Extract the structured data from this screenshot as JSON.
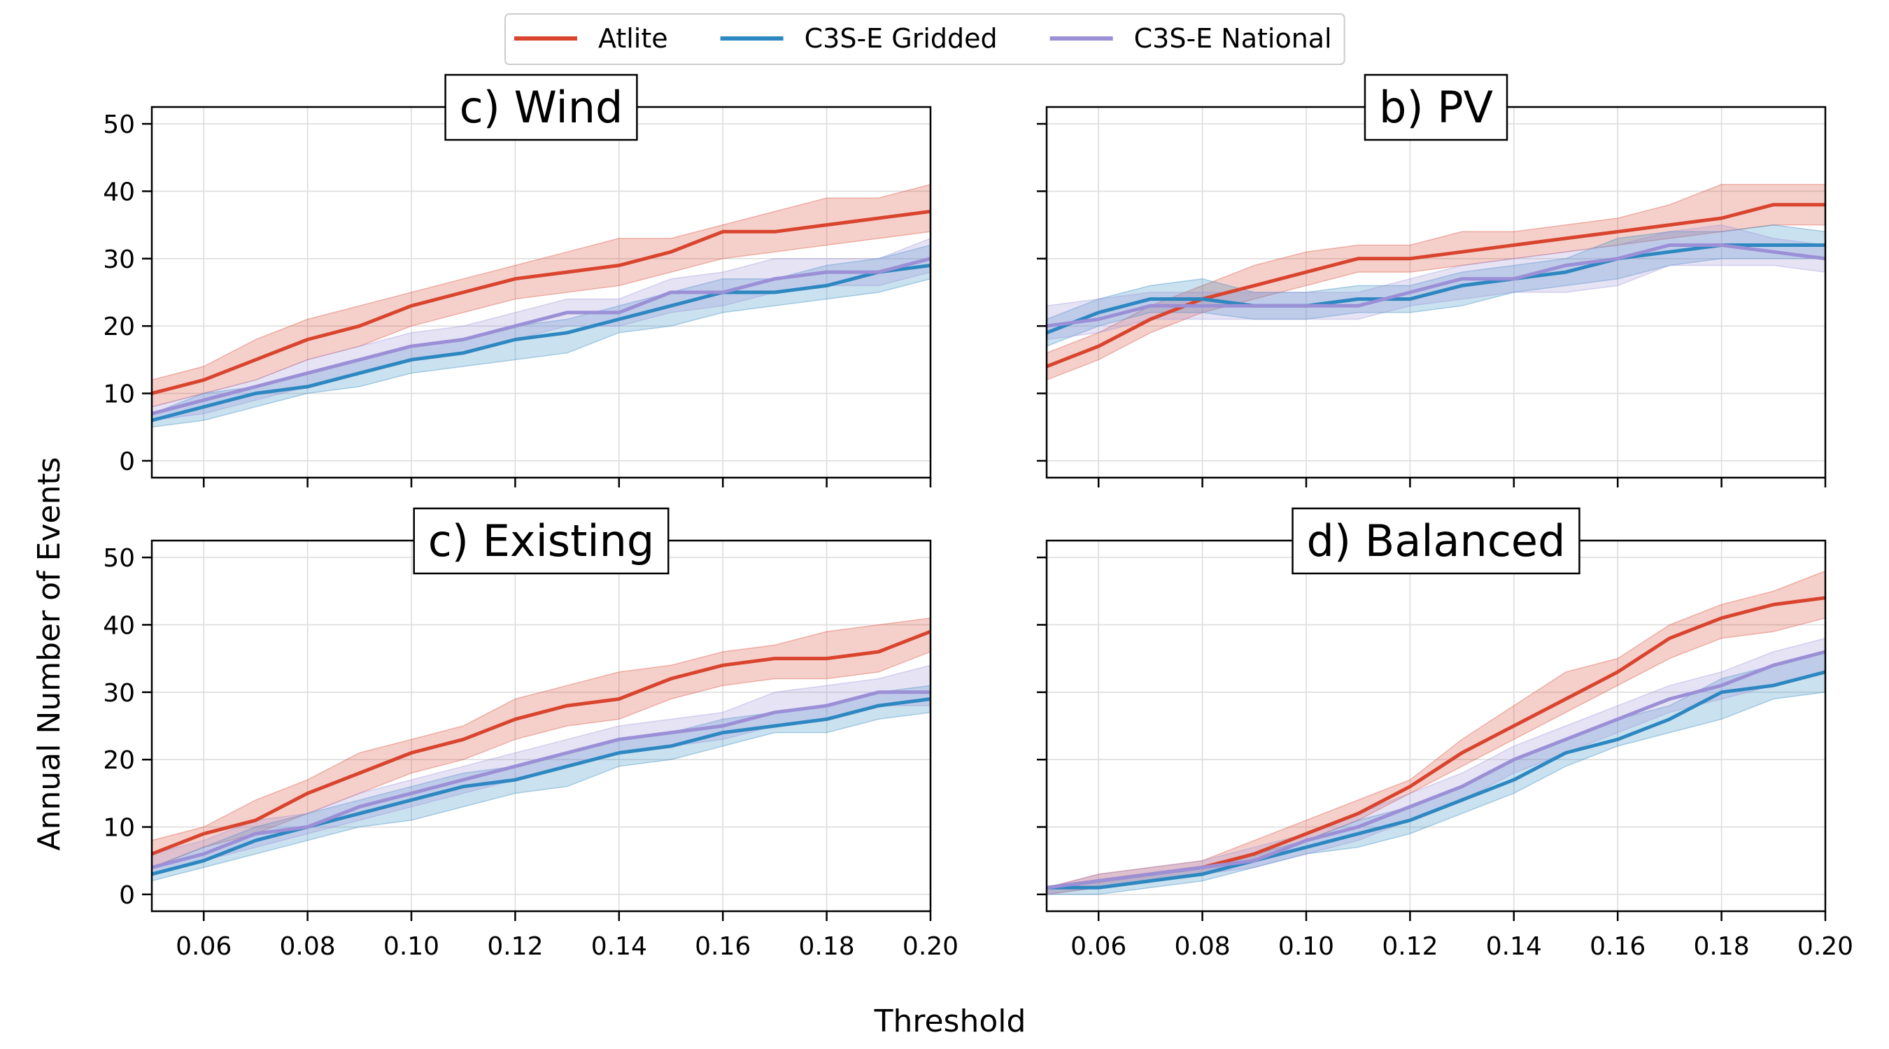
{
  "figure": {
    "ylabel": "Annual Number of Events",
    "xlabel": "Threshold"
  },
  "legend": {
    "placement": "top-center",
    "entries": [
      {
        "name": "Atlite",
        "color": "#d9442e"
      },
      {
        "name": "C3S-E Gridded",
        "color": "#2d87c0"
      },
      {
        "name": "C3S-E National",
        "color": "#9b8fd6"
      }
    ]
  },
  "chart_data": [
    {
      "type": "line",
      "panel": "top-left",
      "title": "c) Wind",
      "xlim": [
        0.05,
        0.2
      ],
      "ylim": [
        -2.5,
        52.5
      ],
      "grid": true,
      "x_ticks": [
        "0.06",
        "0.08",
        "0.10",
        "0.12",
        "0.14",
        "0.16",
        "0.18",
        "0.20"
      ],
      "y_ticks": [
        "0",
        "10",
        "20",
        "30",
        "40",
        "50"
      ],
      "x": [
        0.05,
        0.06,
        0.07,
        0.08,
        0.09,
        0.1,
        0.11,
        0.12,
        0.13,
        0.14,
        0.15,
        0.16,
        0.17,
        0.18,
        0.19,
        0.2
      ],
      "series": [
        {
          "name": "Atlite",
          "values": [
            10,
            12,
            15,
            18,
            20,
            23,
            25,
            27,
            28,
            29,
            31,
            34,
            34,
            35,
            36,
            37
          ],
          "lower": [
            8,
            10,
            12,
            15,
            17,
            20,
            22,
            24,
            25,
            26,
            28,
            30,
            31,
            32,
            33,
            34
          ],
          "upper": [
            12,
            14,
            18,
            21,
            23,
            25,
            27,
            29,
            31,
            33,
            33,
            35,
            37,
            39,
            39,
            41
          ]
        },
        {
          "name": "C3S-E Gridded",
          "values": [
            6,
            8,
            10,
            11,
            13,
            15,
            16,
            18,
            19,
            21,
            23,
            25,
            25,
            26,
            28,
            29
          ],
          "lower": [
            5,
            6,
            8,
            10,
            11,
            13,
            14,
            15,
            16,
            19,
            20,
            22,
            23,
            24,
            25,
            27
          ],
          "upper": [
            7,
            10,
            11,
            13,
            15,
            17,
            18,
            20,
            21,
            23,
            25,
            27,
            27,
            29,
            30,
            32
          ]
        },
        {
          "name": "C3S-E National",
          "values": [
            7,
            9,
            11,
            13,
            15,
            17,
            18,
            20,
            22,
            22,
            25,
            25,
            27,
            28,
            28,
            30
          ],
          "lower": [
            6,
            7,
            9,
            11,
            13,
            15,
            16,
            18,
            20,
            20,
            22,
            23,
            25,
            26,
            26,
            28
          ],
          "upper": [
            8,
            10,
            12,
            15,
            17,
            19,
            20,
            22,
            24,
            24,
            27,
            28,
            30,
            30,
            30,
            33
          ]
        }
      ]
    },
    {
      "type": "line",
      "panel": "top-right",
      "title": "b) PV",
      "xlim": [
        0.05,
        0.2
      ],
      "ylim": [
        -2.5,
        52.5
      ],
      "grid": true,
      "x_ticks": [
        "0.06",
        "0.08",
        "0.10",
        "0.12",
        "0.14",
        "0.16",
        "0.18",
        "0.20"
      ],
      "y_ticks": [
        "0",
        "10",
        "20",
        "30",
        "40",
        "50"
      ],
      "x": [
        0.05,
        0.06,
        0.07,
        0.08,
        0.09,
        0.1,
        0.11,
        0.12,
        0.13,
        0.14,
        0.15,
        0.16,
        0.17,
        0.18,
        0.19,
        0.2
      ],
      "series": [
        {
          "name": "Atlite",
          "values": [
            14,
            17,
            21,
            24,
            26,
            28,
            30,
            30,
            31,
            32,
            33,
            34,
            35,
            36,
            38,
            38
          ],
          "lower": [
            12,
            15,
            19,
            22,
            24,
            26,
            28,
            28,
            29,
            30,
            31,
            32,
            33,
            34,
            35,
            35
          ],
          "upper": [
            16,
            19,
            23,
            26,
            29,
            31,
            32,
            32,
            34,
            34,
            35,
            36,
            38,
            41,
            41,
            41
          ]
        },
        {
          "name": "C3S-E Gridded",
          "values": [
            19,
            22,
            24,
            24,
            23,
            23,
            24,
            24,
            26,
            27,
            28,
            30,
            31,
            32,
            32,
            32
          ],
          "lower": [
            17,
            20,
            22,
            22,
            21,
            21,
            22,
            22,
            23,
            25,
            26,
            27,
            29,
            30,
            30,
            30
          ],
          "upper": [
            21,
            24,
            26,
            27,
            25,
            25,
            26,
            26,
            28,
            29,
            30,
            33,
            34,
            34,
            35,
            34
          ]
        },
        {
          "name": "C3S-E National",
          "values": [
            20,
            21,
            23,
            23,
            23,
            23,
            23,
            25,
            27,
            27,
            29,
            30,
            32,
            32,
            31,
            30
          ],
          "lower": [
            18,
            19,
            21,
            21,
            21,
            21,
            21,
            23,
            24,
            25,
            25,
            26,
            29,
            29,
            29,
            28
          ],
          "upper": [
            23,
            24,
            25,
            25,
            25,
            25,
            25,
            27,
            29,
            30,
            31,
            32,
            34,
            35,
            33,
            32
          ]
        }
      ]
    },
    {
      "type": "line",
      "panel": "bottom-left",
      "title": "c) Existing",
      "xlim": [
        0.05,
        0.2
      ],
      "ylim": [
        -2.5,
        52.5
      ],
      "grid": true,
      "x_ticks": [
        "0.06",
        "0.08",
        "0.10",
        "0.12",
        "0.14",
        "0.16",
        "0.18",
        "0.20"
      ],
      "y_ticks": [
        "0",
        "10",
        "20",
        "30",
        "40",
        "50"
      ],
      "x": [
        0.05,
        0.06,
        0.07,
        0.08,
        0.09,
        0.1,
        0.11,
        0.12,
        0.13,
        0.14,
        0.15,
        0.16,
        0.17,
        0.18,
        0.19,
        0.2
      ],
      "series": [
        {
          "name": "Atlite",
          "values": [
            6,
            9,
            11,
            15,
            18,
            21,
            23,
            26,
            28,
            29,
            32,
            34,
            35,
            35,
            36,
            39
          ],
          "lower": [
            4,
            7,
            9,
            12,
            15,
            18,
            20,
            23,
            25,
            26,
            29,
            31,
            32,
            32,
            33,
            36
          ],
          "upper": [
            8,
            10,
            14,
            17,
            21,
            23,
            25,
            29,
            31,
            33,
            34,
            36,
            37,
            39,
            40,
            41
          ]
        },
        {
          "name": "C3S-E Gridded",
          "values": [
            3,
            5,
            8,
            10,
            12,
            14,
            16,
            17,
            19,
            21,
            22,
            24,
            25,
            26,
            28,
            29
          ],
          "lower": [
            2,
            4,
            6,
            8,
            10,
            11,
            13,
            15,
            16,
            19,
            20,
            22,
            24,
            24,
            26,
            27
          ],
          "upper": [
            4,
            7,
            10,
            12,
            14,
            16,
            18,
            19,
            21,
            23,
            24,
            26,
            27,
            28,
            30,
            31
          ]
        },
        {
          "name": "C3S-E National",
          "values": [
            4,
            6,
            9,
            10,
            13,
            15,
            17,
            19,
            21,
            23,
            24,
            25,
            27,
            28,
            30,
            30
          ],
          "lower": [
            3,
            5,
            7,
            9,
            11,
            13,
            15,
            17,
            19,
            21,
            22,
            23,
            25,
            26,
            28,
            28
          ],
          "upper": [
            6,
            8,
            11,
            12,
            15,
            17,
            19,
            21,
            23,
            25,
            26,
            27,
            30,
            31,
            32,
            34
          ]
        }
      ]
    },
    {
      "type": "line",
      "panel": "bottom-right",
      "title": "d) Balanced",
      "xlim": [
        0.05,
        0.2
      ],
      "ylim": [
        -2.5,
        52.5
      ],
      "grid": true,
      "x_ticks": [
        "0.06",
        "0.08",
        "0.10",
        "0.12",
        "0.14",
        "0.16",
        "0.18",
        "0.20"
      ],
      "y_ticks": [
        "0",
        "10",
        "20",
        "30",
        "40",
        "50"
      ],
      "x": [
        0.05,
        0.06,
        0.07,
        0.08,
        0.09,
        0.1,
        0.11,
        0.12,
        0.13,
        0.14,
        0.15,
        0.16,
        0.17,
        0.18,
        0.19,
        0.2
      ],
      "series": [
        {
          "name": "Atlite",
          "values": [
            1,
            2,
            3,
            4,
            6,
            9,
            12,
            16,
            21,
            25,
            29,
            33,
            38,
            41,
            43,
            44
          ],
          "lower": [
            0,
            1,
            2,
            3,
            5,
            8,
            11,
            15,
            19,
            23,
            27,
            31,
            35,
            38,
            39,
            41
          ],
          "upper": [
            1,
            3,
            4,
            5,
            8,
            11,
            14,
            17,
            23,
            28,
            33,
            35,
            40,
            43,
            45,
            48
          ]
        },
        {
          "name": "C3S-E Gridded",
          "values": [
            1,
            1,
            2,
            3,
            5,
            7,
            9,
            11,
            14,
            17,
            21,
            23,
            26,
            30,
            31,
            33
          ],
          "lower": [
            0,
            0,
            1,
            2,
            4,
            6,
            7,
            9,
            12,
            15,
            19,
            22,
            24,
            26,
            29,
            30
          ],
          "upper": [
            1,
            2,
            3,
            4,
            6,
            8,
            11,
            13,
            16,
            20,
            23,
            26,
            28,
            32,
            34,
            36
          ]
        },
        {
          "name": "C3S-E National",
          "values": [
            1,
            2,
            3,
            4,
            5,
            8,
            10,
            13,
            16,
            20,
            23,
            26,
            29,
            31,
            34,
            36
          ],
          "lower": [
            0,
            1,
            2,
            3,
            4,
            6,
            8,
            11,
            14,
            18,
            21,
            24,
            27,
            29,
            31,
            33
          ],
          "upper": [
            1,
            3,
            4,
            5,
            7,
            9,
            12,
            15,
            18,
            22,
            25,
            28,
            31,
            33,
            36,
            38
          ]
        }
      ]
    }
  ]
}
